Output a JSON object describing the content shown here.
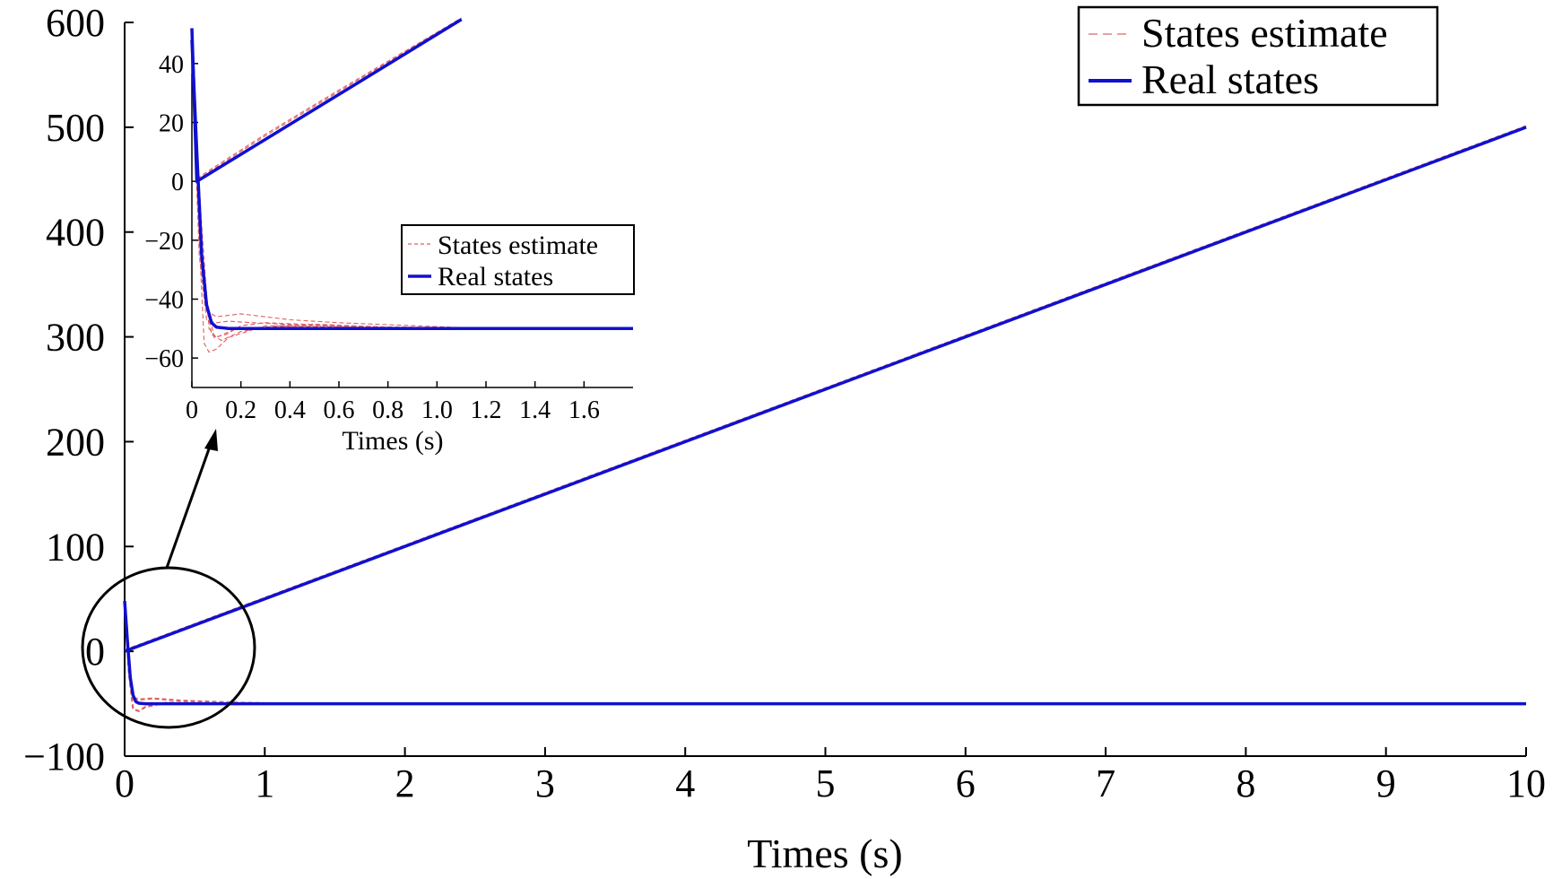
{
  "chart_data": [
    {
      "type": "line",
      "role": "main",
      "xlabel": "Times (s)",
      "ylabel": "",
      "xlim": [
        0,
        10
      ],
      "ylim": [
        -100,
        600
      ],
      "xticks": [
        "0",
        "1",
        "2",
        "3",
        "4",
        "5",
        "6",
        "7",
        "8",
        "9",
        "10"
      ],
      "yticks": [
        "−100",
        "0",
        "100",
        "200",
        "300",
        "400",
        "500",
        "600"
      ],
      "grid": false,
      "legend_position": "top-right",
      "legend": [
        "States estimate",
        "Real states"
      ],
      "colors": {
        "estimate": "#e06060",
        "real": "#1010d0"
      },
      "series": [
        {
          "name": "Real states",
          "style": "solid",
          "x": [
            0,
            10
          ],
          "y": [
            0,
            500
          ]
        },
        {
          "name": "Real states",
          "style": "solid",
          "x": [
            0,
            0.02,
            0.04,
            0.06,
            0.08,
            0.1,
            0.15,
            0.2,
            0.5,
            1,
            10
          ],
          "y": [
            48,
            10,
            -25,
            -42,
            -48,
            -49.5,
            -50,
            -50,
            -50,
            -50,
            -50
          ]
        },
        {
          "name": "States estimate",
          "style": "dashed",
          "x": [
            0,
            10
          ],
          "y": [
            1,
            501
          ]
        },
        {
          "name": "States estimate",
          "style": "dashed",
          "x": [
            0,
            0.03,
            0.06,
            0.1,
            0.15,
            0.3,
            0.6,
            1,
            10
          ],
          "y": [
            45,
            -20,
            -55,
            -57,
            -53,
            -49,
            -49.5,
            -50,
            -50
          ]
        },
        {
          "name": "States estimate",
          "style": "dashed",
          "x": [
            0,
            0.03,
            0.06,
            0.1,
            0.2,
            0.4,
            0.8,
            1.2,
            10
          ],
          "y": [
            44,
            -10,
            -44,
            -46,
            -45,
            -47,
            -49,
            -50,
            -50
          ]
        }
      ],
      "annotations": [
        "circle around t≈0 region",
        "arrow pointing to inset"
      ]
    },
    {
      "type": "line",
      "role": "inset",
      "xlabel": "Times (s)",
      "ylabel": "",
      "xlim": [
        0,
        1.8
      ],
      "ylim": [
        -70,
        50
      ],
      "xticks": [
        "0",
        "0.2",
        "0.4",
        "0.6",
        "0.8",
        "1.0",
        "1.2",
        "1.4",
        "1.6"
      ],
      "yticks": [
        "40",
        "20",
        "0",
        "−20",
        "−40",
        "−60"
      ],
      "grid": false,
      "legend_position": "center-right",
      "legend": [
        "States estimate",
        "Real states"
      ],
      "series": [
        {
          "name": "Real states",
          "style": "solid",
          "x": [
            0.0,
            0.02,
            1.1
          ],
          "y": [
            52,
            0,
            55
          ]
        },
        {
          "name": "Real states",
          "style": "solid",
          "x": [
            0.0,
            0.02,
            0.04,
            0.06,
            0.08,
            0.1,
            0.15,
            0.2,
            0.5,
            1.0,
            1.8
          ],
          "y": [
            48,
            10,
            -25,
            -42,
            -48,
            -49.5,
            -50,
            -50,
            -50,
            -50,
            -50
          ]
        },
        {
          "name": "States estimate",
          "style": "dashed",
          "x": [
            0.02,
            0.3,
            0.6,
            1.1
          ],
          "y": [
            1,
            16,
            31,
            55.5
          ]
        },
        {
          "name": "States estimate",
          "style": "dashed",
          "x": [
            0.02,
            0.3,
            0.6,
            1.0
          ],
          "y": [
            0.5,
            15.5,
            30.5,
            50.5
          ]
        },
        {
          "name": "States estimate",
          "style": "dashed",
          "x": [
            0.0,
            0.03,
            0.05,
            0.07,
            0.1,
            0.15,
            0.3,
            0.6,
            1.0,
            1.8
          ],
          "y": [
            45,
            -20,
            -55,
            -58,
            -57,
            -53,
            -49,
            -49.5,
            -50,
            -50
          ]
        },
        {
          "name": "States estimate",
          "style": "dashed",
          "x": [
            0.0,
            0.03,
            0.06,
            0.1,
            0.2,
            0.3,
            0.4,
            0.6,
            0.9,
            1.2,
            1.8
          ],
          "y": [
            44,
            -10,
            -44,
            -46,
            -45,
            -46,
            -47,
            -48,
            -49,
            -50,
            -50
          ]
        },
        {
          "name": "States estimate",
          "style": "dashed",
          "x": [
            0.0,
            0.04,
            0.08,
            0.12,
            0.2,
            0.35,
            0.5,
            0.8,
            1.8
          ],
          "y": [
            40,
            -30,
            -52,
            -54,
            -51,
            -49,
            -48.5,
            -49.5,
            -50
          ]
        },
        {
          "name": "States estimate",
          "style": "dashed",
          "x": [
            0.0,
            0.03,
            0.06,
            0.1,
            0.15,
            0.25,
            0.5,
            0.8,
            1.8
          ],
          "y": [
            42,
            -25,
            -47,
            -48,
            -47.5,
            -48,
            -49,
            -49.5,
            -50
          ]
        },
        {
          "name": "States estimate",
          "style": "dashed",
          "x": [
            0.0,
            0.05,
            0.09,
            0.14,
            0.2,
            0.3,
            0.45,
            0.7,
            1.8
          ],
          "y": [
            38,
            -35,
            -53,
            -52,
            -49,
            -48,
            -48.5,
            -49.5,
            -50
          ]
        },
        {
          "name": "States estimate",
          "style": "dashed",
          "x": [
            0.0,
            0.04,
            0.07,
            0.1,
            0.18,
            0.3,
            0.5,
            1.0,
            1.8
          ],
          "y": [
            43,
            -15,
            -50,
            -53,
            -50,
            -49.5,
            -49,
            -50,
            -50
          ]
        }
      ]
    }
  ]
}
